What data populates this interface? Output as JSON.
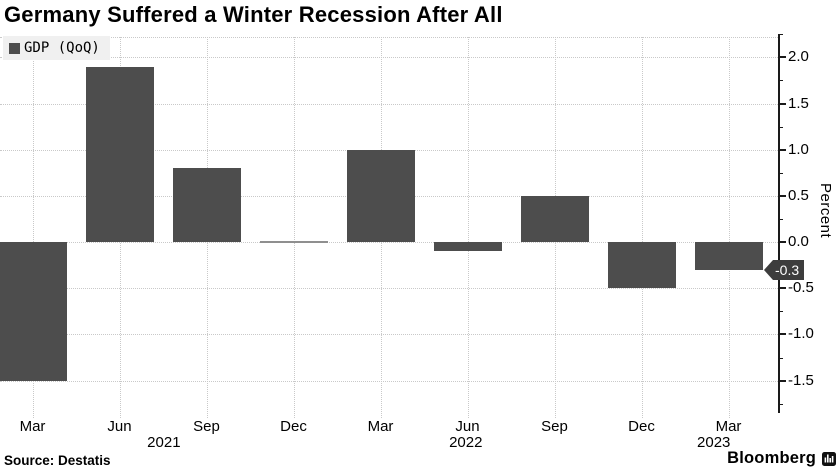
{
  "title": "Germany Suffered a Winter Recession After All",
  "legend": {
    "label": "GDP (QoQ)"
  },
  "source_label": "Source: Destatis",
  "brand": {
    "name": "Bloomberg",
    "icon": "bloomberg-mark-icon"
  },
  "colors": {
    "bar": "#4d4d4d",
    "zero_bar": "#8f8f8f",
    "grid": "#c9c9c9",
    "axis": "#1a1a1a",
    "legend_bg": "#f0f0f0",
    "marker_bg": "#3d3d3d",
    "marker_text": "#ffffff"
  },
  "chart_data": {
    "type": "bar",
    "title": "Germany Suffered a Winter Recession After All",
    "series_name": "GDP (QoQ)",
    "categories": [
      "Mar",
      "Jun",
      "Sep",
      "Dec",
      "Mar",
      "Jun",
      "Sep",
      "Dec",
      "Mar"
    ],
    "values": [
      -1.5,
      1.9,
      0.8,
      0.0,
      1.0,
      -0.1,
      0.5,
      -0.5,
      -0.3
    ],
    "year_labels": [
      {
        "text": "2021",
        "index": 1.51
      },
      {
        "text": "2022",
        "index": 4.98
      },
      {
        "text": "2023",
        "index": 7.83
      }
    ],
    "ylabel": "Percent",
    "ylim": [
      -1.85,
      2.22
    ],
    "yticks": [
      {
        "label": "2.0",
        "value": 2.0
      },
      {
        "label": "1.5",
        "value": 1.5
      },
      {
        "label": "1.0",
        "value": 1.0
      },
      {
        "label": "0.5",
        "value": 0.5
      },
      {
        "label": "0.0",
        "value": 0.0
      },
      {
        "label": "-0.5",
        "value": -0.5
      },
      {
        "label": "-1.0",
        "value": -1.0
      },
      {
        "label": "-1.5",
        "value": -1.5
      }
    ],
    "minor_tick_step": 0.25,
    "minor_tick_range": [
      -1.75,
      2.25
    ],
    "grid": true,
    "legend_position": "top-left",
    "annotation": {
      "text": "-0.3",
      "value": -0.3
    },
    "xlabel": ""
  }
}
